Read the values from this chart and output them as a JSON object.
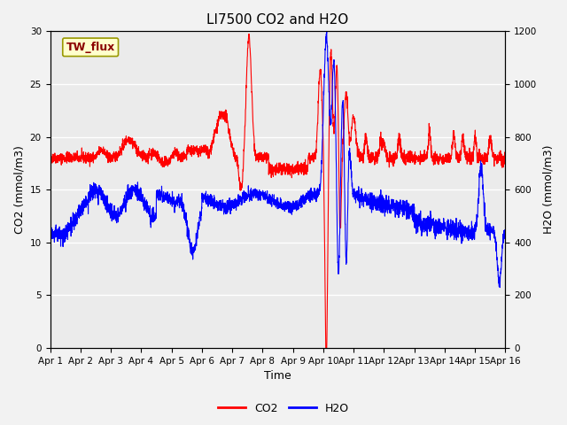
{
  "title": "LI7500 CO2 and H2O",
  "xlabel": "Time",
  "ylabel_left": "CO2 (mmol/m3)",
  "ylabel_right": "H2O (mmol/m3)",
  "annotation_text": "TW_flux",
  "xlim_days": [
    0,
    15
  ],
  "ylim_left": [
    0,
    30
  ],
  "ylim_right": [
    0,
    1200
  ],
  "xtick_labels": [
    "Apr 1",
    "Apr 2",
    "Apr 3",
    "Apr 4",
    "Apr 5",
    "Apr 6",
    "Apr 7",
    "Apr 8",
    "Apr 9",
    "Apr 10",
    "Apr 11",
    "Apr 12",
    "Apr 13",
    "Apr 14",
    "Apr 15",
    "Apr 16"
  ],
  "yticks_left": [
    0,
    5,
    10,
    15,
    20,
    25,
    30
  ],
  "yticks_right": [
    0,
    200,
    400,
    600,
    800,
    1000,
    1200
  ],
  "co2_color": "#ff0000",
  "h2o_color": "#0000ff",
  "line_width": 0.8,
  "bg_color": "#ebebeb",
  "grid_color": "#ffffff",
  "legend_co2": "CO2",
  "legend_h2o": "H2O",
  "title_fontsize": 11,
  "axis_label_fontsize": 9,
  "tick_fontsize": 7.5,
  "annotation_fontsize": 9
}
